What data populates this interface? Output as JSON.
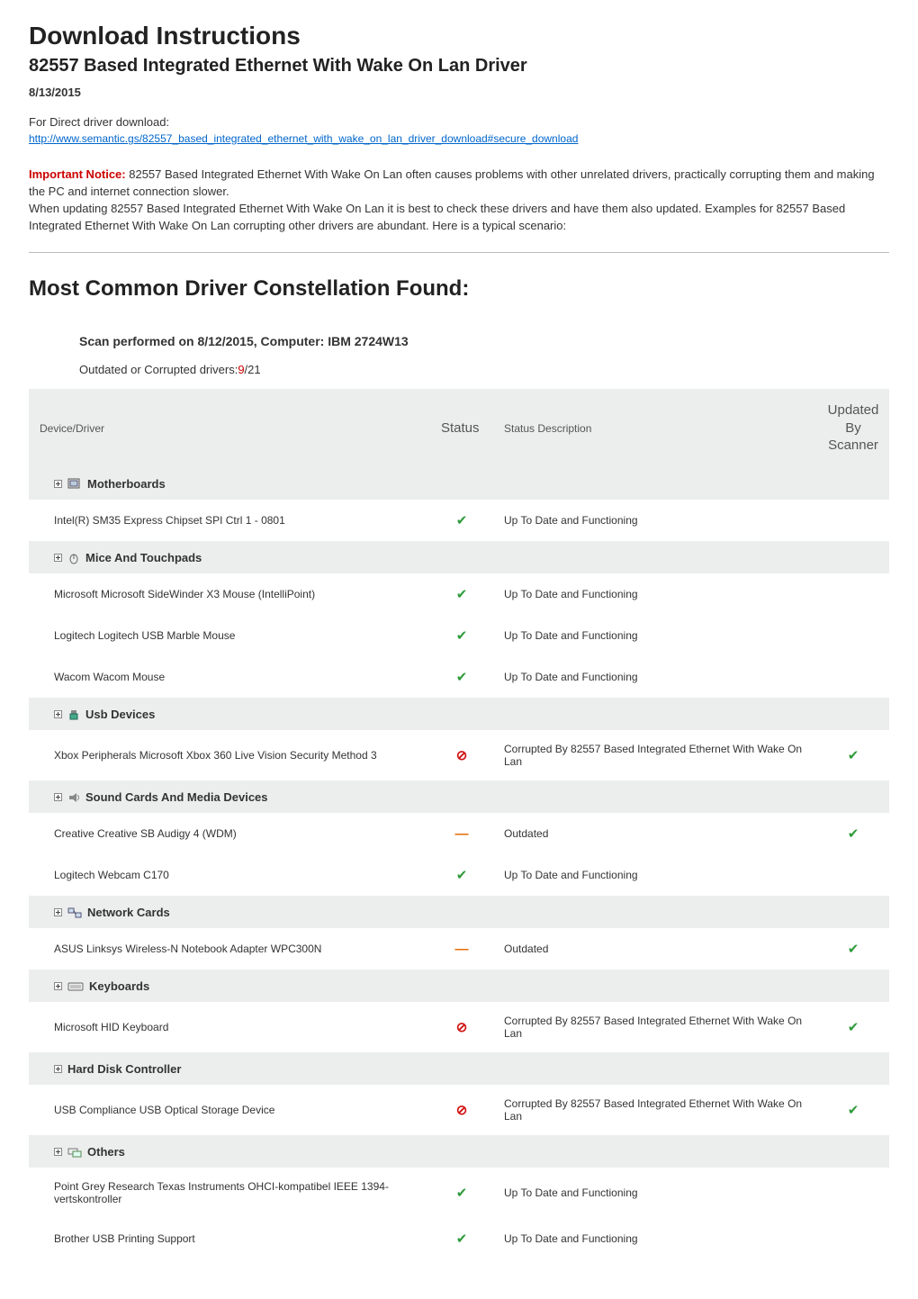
{
  "header": {
    "title": "Download Instructions",
    "subtitle": "82557 Based Integrated Ethernet With Wake On Lan Driver",
    "date": "8/13/2015",
    "direct_label": "For Direct driver download:",
    "link_text": "http://www.semantic.gs/82557_based_integrated_ethernet_with_wake_on_lan_driver_download#secure_download"
  },
  "notice": {
    "label": "Important Notice:",
    "line1": " 82557 Based Integrated Ethernet With Wake On Lan often causes problems with other unrelated drivers, practically corrupting them and making the PC and internet connection slower.",
    "line2": "When updating 82557 Based Integrated Ethernet With Wake On Lan it is best to check these drivers and have them also updated. Examples for 82557 Based Integrated Ethernet With Wake On Lan corrupting other drivers are abundant. Here is a typical scenario:"
  },
  "section_title": "Most Common Driver Constellation Found:",
  "scan": {
    "label": "Scan performed on 8/12/2015, Computer: IBM 2724W13",
    "outdated_prefix": "Outdated or Corrupted drivers:",
    "outdated_num": "9",
    "outdated_suffix": "/21"
  },
  "table": {
    "headers": {
      "device": "Device/Driver",
      "status": "Status",
      "desc": "Status Description",
      "updated": "Updated\nBy\nScanner"
    },
    "status_glyphs": {
      "check": "✔",
      "block": "⊘",
      "dash": "—"
    },
    "colors": {
      "check": "#2e9b3a",
      "block": "#d11313",
      "dash": "#e46a00",
      "header_bg": "#eceded",
      "text": "#333333",
      "link": "#0066cc",
      "notice_red": "#cc0000"
    },
    "categories": [
      {
        "icon": "motherboard",
        "label": "Motherboards",
        "rows": [
          {
            "device": "Intel(R) SM35 Express Chipset SPI Ctrl 1 - 0801",
            "status": "check",
            "desc": "Up To Date and Functioning",
            "updated": ""
          }
        ]
      },
      {
        "icon": "mouse",
        "label": "Mice And Touchpads",
        "rows": [
          {
            "device": "Microsoft Microsoft SideWinder X3 Mouse (IntelliPoint)",
            "status": "check",
            "desc": "Up To Date and Functioning",
            "updated": ""
          },
          {
            "device": "Logitech Logitech USB Marble Mouse",
            "status": "check",
            "desc": "Up To Date and Functioning",
            "updated": ""
          },
          {
            "device": "Wacom Wacom Mouse",
            "status": "check",
            "desc": "Up To Date and Functioning",
            "updated": ""
          }
        ]
      },
      {
        "icon": "usb",
        "label": "Usb Devices",
        "rows": [
          {
            "device": "Xbox Peripherals Microsoft Xbox 360 Live Vision Security Method 3",
            "status": "block",
            "desc": "Corrupted By 82557 Based Integrated Ethernet With Wake On Lan",
            "updated": "check"
          }
        ]
      },
      {
        "icon": "sound",
        "label": "Sound Cards And Media Devices",
        "rows": [
          {
            "device": "Creative Creative SB Audigy 4 (WDM)",
            "status": "dash",
            "desc": "Outdated",
            "updated": "check"
          },
          {
            "device": "Logitech Webcam C170",
            "status": "check",
            "desc": "Up To Date and Functioning",
            "updated": ""
          }
        ]
      },
      {
        "icon": "network",
        "label": "Network Cards",
        "rows": [
          {
            "device": "ASUS Linksys Wireless-N Notebook Adapter WPC300N",
            "status": "dash",
            "desc": "Outdated",
            "updated": "check"
          }
        ]
      },
      {
        "icon": "keyboard",
        "label": "Keyboards",
        "rows": [
          {
            "device": "Microsoft HID Keyboard",
            "status": "block",
            "desc": "Corrupted By 82557 Based Integrated Ethernet With Wake On Lan",
            "updated": "check"
          }
        ]
      },
      {
        "icon": "none",
        "label": "Hard Disk Controller",
        "rows": [
          {
            "device": "USB Compliance USB Optical Storage Device",
            "status": "block",
            "desc": "Corrupted By 82557 Based Integrated Ethernet With Wake On Lan",
            "updated": "check"
          }
        ]
      },
      {
        "icon": "others",
        "label": "Others",
        "rows": [
          {
            "device": "Point Grey Research Texas Instruments OHCI-kompatibel IEEE 1394-vertskontroller",
            "status": "check",
            "desc": "Up To Date and Functioning",
            "updated": ""
          },
          {
            "device": "Brother USB Printing Support",
            "status": "check",
            "desc": "Up To Date and Functioning",
            "updated": ""
          }
        ]
      }
    ]
  }
}
